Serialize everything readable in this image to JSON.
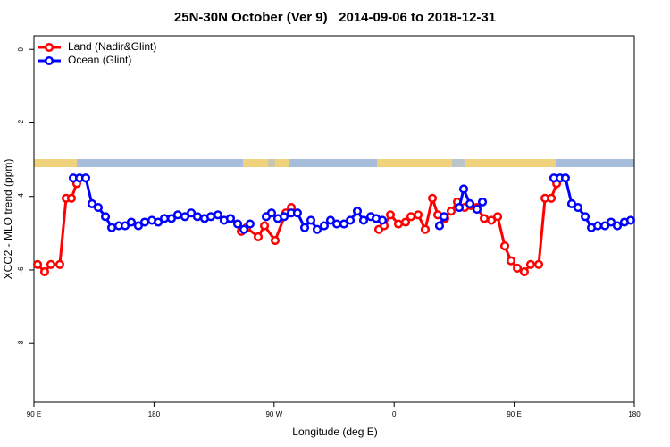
{
  "chart_data": {
    "type": "line",
    "title": "25N-30N October (Ver 9)   2014-09-06 to 2018-12-31",
    "x_label": "Longitude (deg E)",
    "y_label": "XCO2 - MLO trend (ppm)",
    "xlim": [
      90,
      540
    ],
    "ylim": [
      -9.6,
      0.37
    ],
    "xticks": [
      {
        "value": 90,
        "label": "90 E"
      },
      {
        "value": 180,
        "label": "180"
      },
      {
        "value": 270,
        "label": "90 W"
      },
      {
        "value": 360,
        "label": "0"
      },
      {
        "value": 450,
        "label": "90 E"
      },
      {
        "value": 540,
        "label": "180"
      }
    ],
    "yticks": [
      0,
      -2,
      -4,
      -6,
      -8
    ],
    "legend": "top-left",
    "series": [
      {
        "name": "Land (Nadir&Glint)",
        "color": "#ff0000",
        "x": [
          92.7,
          98,
          102.7,
          109.4,
          114.1,
          118.1,
          122.1,
          null,
          245.4,
          249.4,
          258.1,
          262.8,
          270.8,
          278.8,
          282.9,
          null,
          348.5,
          352.5,
          357.2,
          363.2,
          368.6,
          372.6,
          378,
          383.3,
          388.7,
          392.7,
          398,
          402.7,
          407.4,
          412.8,
          417.5,
          422.1,
          427.5,
          432.9,
          437.6,
          442.9,
          447.6,
          452.3,
          457.6,
          462.3,
          468.4,
          473.1,
          477.8,
          481.8
        ],
        "values": [
          -5.85,
          -6.05,
          -5.85,
          -5.85,
          -4.05,
          -4.05,
          -3.65,
          null,
          -4.95,
          -4.85,
          -5.1,
          -4.8,
          -5.2,
          -4.45,
          -4.3,
          null,
          -4.9,
          -4.8,
          -4.5,
          -4.75,
          -4.7,
          -4.55,
          -4.5,
          -4.9,
          -4.05,
          -4.5,
          -4.6,
          -4.4,
          -4.15,
          -4.3,
          -4.25,
          -4.3,
          -4.6,
          -4.65,
          -4.55,
          -5.35,
          -5.75,
          -5.95,
          -6.05,
          -5.85,
          -5.85,
          -4.05,
          -4.05,
          -3.65
        ]
      },
      {
        "name": "Ocean (Glint)",
        "color": "#0000ff",
        "x": [
          119.5,
          124.2,
          128.8,
          133.5,
          138.2,
          143.6,
          148.3,
          153.6,
          158.3,
          163,
          168.3,
          173,
          178.4,
          183.1,
          187.8,
          193.1,
          197.8,
          203.2,
          207.9,
          212.5,
          217.9,
          222.6,
          227.9,
          232.6,
          237.3,
          242.7,
          247.4,
          252,
          null,
          264.1,
          268.1,
          272.8,
          277.5,
          282.9,
          287.5,
          292.9,
          297.6,
          302.3,
          307.6,
          312.3,
          317,
          322.4,
          327.1,
          332.4,
          337.1,
          342.5,
          346.5,
          351.2,
          null,
          394,
          397.4,
          null,
          408.8,
          412.1,
          416.8,
          422.1,
          426.2,
          null,
          479.7,
          484.4,
          488.4,
          493.1,
          497.8,
          503.2,
          507.9,
          512.6,
          518,
          522.6,
          527.3,
          532.6,
          537.3
        ],
        "values": [
          -3.5,
          -3.5,
          -3.5,
          -4.2,
          -4.3,
          -4.55,
          -4.85,
          -4.8,
          -4.8,
          -4.7,
          -4.8,
          -4.7,
          -4.65,
          -4.7,
          -4.6,
          -4.6,
          -4.5,
          -4.55,
          -4.45,
          -4.55,
          -4.6,
          -4.55,
          -4.5,
          -4.65,
          -4.6,
          -4.75,
          -4.9,
          -4.75,
          null,
          -4.55,
          -4.45,
          -4.6,
          -4.55,
          -4.45,
          -4.45,
          -4.85,
          -4.65,
          -4.9,
          -4.8,
          -4.65,
          -4.75,
          -4.75,
          -4.65,
          -4.4,
          -4.65,
          -4.55,
          -4.6,
          -4.65,
          null,
          -4.8,
          -4.55,
          null,
          -4.3,
          -3.8,
          -4.2,
          -4.35,
          -4.15,
          null,
          -3.5,
          -3.5,
          -3.5,
          -4.2,
          -4.3,
          -4.55,
          -4.85,
          -4.8,
          -4.8,
          -4.7,
          -4.8,
          -4.7,
          -4.65
        ]
      }
    ]
  }
}
